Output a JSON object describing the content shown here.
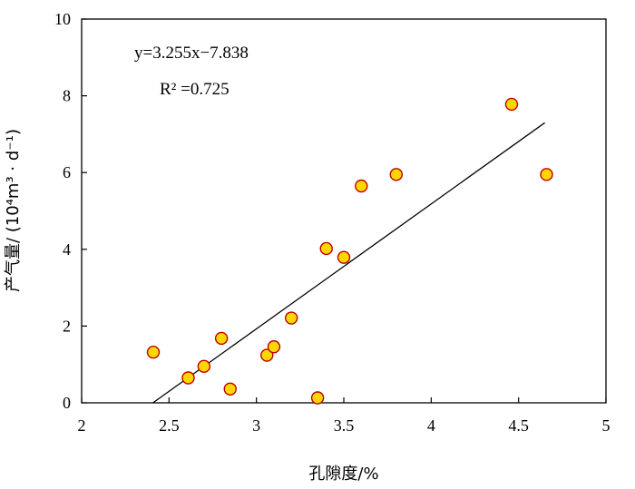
{
  "chart_data": {
    "type": "scatter",
    "xlabel": "孔隙度/%",
    "ylabel": "产气量/ (10⁴m³ · d⁻¹)",
    "xlim": [
      2,
      5
    ],
    "ylim": [
      0,
      10
    ],
    "xticks": [
      "2",
      "2.5",
      "3",
      "3.5",
      "4",
      "4.5",
      "5"
    ],
    "yticks": [
      "0",
      "2",
      "4",
      "6",
      "8",
      "10"
    ],
    "annotations": {
      "equation": "y=3.255x−7.838",
      "r_squared": "R² =0.725"
    },
    "points": [
      {
        "x": 2.41,
        "y": 1.32
      },
      {
        "x": 2.61,
        "y": 0.65
      },
      {
        "x": 2.7,
        "y": 0.95
      },
      {
        "x": 2.8,
        "y": 1.68
      },
      {
        "x": 2.85,
        "y": 0.36
      },
      {
        "x": 3.06,
        "y": 1.24
      },
      {
        "x": 3.1,
        "y": 1.46
      },
      {
        "x": 3.2,
        "y": 2.21
      },
      {
        "x": 3.35,
        "y": 0.13
      },
      {
        "x": 3.4,
        "y": 4.02
      },
      {
        "x": 3.5,
        "y": 3.79
      },
      {
        "x": 3.6,
        "y": 5.65
      },
      {
        "x": 3.8,
        "y": 5.95
      },
      {
        "x": 4.46,
        "y": 7.78
      },
      {
        "x": 4.66,
        "y": 5.95
      }
    ],
    "trendline": {
      "slope": 3.255,
      "intercept": -7.838,
      "x_range": [
        2.408,
        4.65
      ]
    },
    "grid": false,
    "marker_fill": "#FFD700",
    "marker_stroke": "#C00000",
    "line_color": "#000000"
  }
}
